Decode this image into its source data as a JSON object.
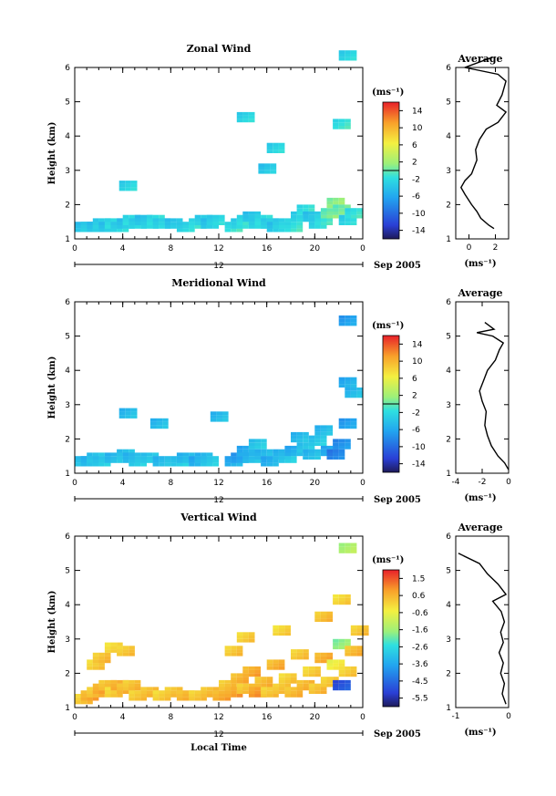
{
  "chart_data": [
    {
      "type": "heatmap",
      "title": "Zonal Wind",
      "ylabel": "Height (km)",
      "xlabel": "",
      "x_ticks": [
        "0",
        "4",
        "8",
        "12",
        "16",
        "20",
        "0"
      ],
      "y_ticks": [
        "1",
        "2",
        "3",
        "4",
        "5",
        "6"
      ],
      "xlim": [
        0,
        24
      ],
      "ylim": [
        1,
        6
      ],
      "date_marker": "12",
      "date_label": "Sep 2005",
      "colorbar": {
        "label": "(ms⁻¹)",
        "range": [
          -16,
          16
        ],
        "ticks": [
          "14",
          "10",
          "6",
          "2",
          "-2",
          "-6",
          "-10",
          "-14"
        ]
      },
      "profile": {
        "title": "Average",
        "xlabel": "(ms⁻¹)",
        "x_ticks": [
          "0",
          "2"
        ],
        "xlim": [
          -1,
          3
        ],
        "y_ticks": [
          "1",
          "2",
          "3",
          "4",
          "5",
          "6"
        ],
        "points": [
          [
            1.9,
            1.3
          ],
          [
            1.5,
            1.4
          ],
          [
            0.9,
            1.6
          ],
          [
            0.6,
            1.8
          ],
          [
            0.2,
            2.0
          ],
          [
            -0.3,
            2.3
          ],
          [
            -0.6,
            2.5
          ],
          [
            -0.3,
            2.7
          ],
          [
            0.2,
            2.9
          ],
          [
            0.4,
            3.1
          ],
          [
            0.6,
            3.3
          ],
          [
            0.5,
            3.6
          ],
          [
            0.8,
            3.9
          ],
          [
            1.3,
            4.2
          ],
          [
            2.2,
            4.4
          ],
          [
            2.8,
            4.7
          ],
          [
            2.1,
            4.9
          ],
          [
            2.5,
            5.2
          ],
          [
            2.8,
            5.6
          ],
          [
            2.2,
            5.8
          ],
          [
            -0.3,
            6.0
          ],
          [
            1.8,
            6.3
          ]
        ]
      },
      "cells": [
        [
          0.5,
          1.3,
          -3
        ],
        [
          1,
          1.3,
          -2
        ],
        [
          1.5,
          1.3,
          -3
        ],
        [
          2,
          1.4,
          -2
        ],
        [
          2.5,
          1.3,
          -3
        ],
        [
          3,
          1.4,
          -1
        ],
        [
          3.5,
          1.3,
          -2
        ],
        [
          4,
          1.4,
          -3
        ],
        [
          4.5,
          1.5,
          -1
        ],
        [
          5,
          1.4,
          -2
        ],
        [
          5.5,
          1.5,
          -3
        ],
        [
          6,
          1.4,
          -2
        ],
        [
          6.5,
          1.5,
          -1
        ],
        [
          7,
          1.4,
          -2
        ],
        [
          8,
          1.4,
          -3
        ],
        [
          9,
          1.3,
          -2
        ],
        [
          10,
          1.4,
          -1
        ],
        [
          10.5,
          1.5,
          -2
        ],
        [
          11,
          1.4,
          -3
        ],
        [
          11.5,
          1.5,
          -2
        ],
        [
          13,
          1.3,
          -1
        ],
        [
          13.5,
          1.4,
          -2
        ],
        [
          14,
          1.5,
          -1
        ],
        [
          14.5,
          1.6,
          -3
        ],
        [
          15,
          1.4,
          -2
        ],
        [
          15.5,
          1.5,
          -1
        ],
        [
          16,
          1.4,
          -2
        ],
        [
          16.5,
          1.3,
          -3
        ],
        [
          17,
          1.4,
          -2
        ],
        [
          18,
          1.3,
          -1
        ],
        [
          18.5,
          1.6,
          -2
        ],
        [
          19,
          1.8,
          -1
        ],
        [
          19.5,
          1.6,
          -3
        ],
        [
          20,
          1.4,
          -2
        ],
        [
          20.5,
          1.5,
          -1
        ],
        [
          21,
          1.7,
          1
        ],
        [
          21.5,
          2.0,
          2
        ],
        [
          22,
          1.8,
          1
        ],
        [
          22.5,
          1.5,
          -2
        ],
        [
          23,
          1.7,
          -1
        ],
        [
          4.2,
          2.5,
          -2
        ],
        [
          14,
          4.5,
          -2
        ],
        [
          15.8,
          3.0,
          -3
        ],
        [
          22,
          4.3,
          -1
        ],
        [
          22.5,
          6.3,
          -2
        ],
        [
          16.5,
          3.6,
          -2
        ]
      ]
    },
    {
      "type": "heatmap",
      "title": "Meridional Wind",
      "ylabel": "Height (km)",
      "xlabel": "",
      "x_ticks": [
        "0",
        "4",
        "8",
        "12",
        "16",
        "20",
        "0"
      ],
      "y_ticks": [
        "1",
        "2",
        "3",
        "4",
        "5",
        "6"
      ],
      "xlim": [
        0,
        24
      ],
      "ylim": [
        1,
        6
      ],
      "date_marker": "12",
      "date_label": "Sep 2005",
      "colorbar": {
        "label": "(ms⁻¹)",
        "range": [
          -16,
          16
        ],
        "ticks": [
          "14",
          "10",
          "6",
          "2",
          "-2",
          "-6",
          "-10",
          "-14"
        ]
      },
      "profile": {
        "title": "Average",
        "xlabel": "(ms⁻¹)",
        "x_ticks": [
          "-4",
          "-2",
          "0"
        ],
        "xlim": [
          -4,
          0
        ],
        "y_ticks": [
          "1",
          "2",
          "3",
          "4",
          "5",
          "6"
        ],
        "points": [
          [
            0.0,
            1.1
          ],
          [
            -0.3,
            1.3
          ],
          [
            -0.8,
            1.5
          ],
          [
            -1.3,
            1.8
          ],
          [
            -1.6,
            2.1
          ],
          [
            -1.8,
            2.4
          ],
          [
            -1.7,
            2.8
          ],
          [
            -2.0,
            3.1
          ],
          [
            -2.2,
            3.4
          ],
          [
            -1.9,
            3.7
          ],
          [
            -1.6,
            4.0
          ],
          [
            -1.0,
            4.3
          ],
          [
            -0.7,
            4.6
          ],
          [
            -0.4,
            4.8
          ],
          [
            -1.2,
            5.0
          ],
          [
            -2.4,
            5.1
          ],
          [
            -1.1,
            5.2
          ],
          [
            -1.8,
            5.4
          ]
        ]
      },
      "cells": [
        [
          0.5,
          1.3,
          -3
        ],
        [
          1,
          1.3,
          -4
        ],
        [
          1.5,
          1.4,
          -3
        ],
        [
          2,
          1.3,
          -3
        ],
        [
          3,
          1.4,
          -4
        ],
        [
          4,
          1.5,
          -3
        ],
        [
          4.5,
          1.4,
          -4
        ],
        [
          5,
          1.3,
          -3
        ],
        [
          6,
          1.4,
          -3
        ],
        [
          7,
          1.3,
          -4
        ],
        [
          8.5,
          1.3,
          -3
        ],
        [
          9,
          1.4,
          -4
        ],
        [
          10,
          1.3,
          -5
        ],
        [
          10.5,
          1.4,
          -4
        ],
        [
          11,
          1.3,
          -3
        ],
        [
          13,
          1.3,
          -5
        ],
        [
          13.5,
          1.4,
          -6
        ],
        [
          14,
          1.6,
          -5
        ],
        [
          14.5,
          1.4,
          -4
        ],
        [
          15,
          1.8,
          -3
        ],
        [
          15.5,
          1.5,
          -4
        ],
        [
          16,
          1.3,
          -5
        ],
        [
          17,
          1.5,
          -4
        ],
        [
          17.5,
          1.4,
          -3
        ],
        [
          18,
          1.6,
          -5
        ],
        [
          18.5,
          2.0,
          -4
        ],
        [
          19,
          1.7,
          -3
        ],
        [
          19.5,
          1.5,
          -4
        ],
        [
          20,
          1.9,
          -3
        ],
        [
          20.5,
          2.2,
          -4
        ],
        [
          21,
          1.6,
          -5
        ],
        [
          21.5,
          1.5,
          -8
        ],
        [
          22,
          1.8,
          -7
        ],
        [
          22.5,
          2.4,
          -6
        ],
        [
          22.5,
          3.6,
          -5
        ],
        [
          23,
          3.3,
          -4
        ],
        [
          4.2,
          2.7,
          -4
        ],
        [
          6.8,
          2.4,
          -4
        ],
        [
          11.8,
          2.6,
          -4
        ],
        [
          22.5,
          5.4,
          -6
        ]
      ]
    },
    {
      "type": "heatmap",
      "title": "Vertical Wind",
      "ylabel": "Height (km)",
      "xlabel": "Local Time",
      "x_ticks": [
        "0",
        "4",
        "8",
        "12",
        "16",
        "20",
        "0"
      ],
      "y_ticks": [
        "1",
        "2",
        "3",
        "4",
        "5",
        "6"
      ],
      "xlim": [
        0,
        24
      ],
      "ylim": [
        1,
        6
      ],
      "date_marker": "12",
      "date_label": "Sep 2005",
      "colorbar": {
        "label": "(ms⁻¹)",
        "range": [
          -6.1,
          2.1
        ],
        "ticks": [
          "1.5",
          "0.6",
          "-0.6",
          "-1.6",
          "-2.6",
          "-3.6",
          "-4.5",
          "-5.5"
        ]
      },
      "profile": {
        "title": "Average",
        "xlabel": "(ms⁻¹)",
        "x_ticks": [
          "-1",
          "0"
        ],
        "xlim": [
          -1,
          0
        ],
        "y_ticks": [
          "1",
          "2",
          "3",
          "4",
          "5",
          "6"
        ],
        "points": [
          [
            -0.05,
            1.1
          ],
          [
            -0.12,
            1.4
          ],
          [
            -0.08,
            1.7
          ],
          [
            -0.15,
            2.0
          ],
          [
            -0.1,
            2.3
          ],
          [
            -0.18,
            2.6
          ],
          [
            -0.1,
            2.9
          ],
          [
            -0.15,
            3.2
          ],
          [
            -0.08,
            3.5
          ],
          [
            -0.14,
            3.8
          ],
          [
            -0.3,
            4.1
          ],
          [
            -0.05,
            4.3
          ],
          [
            -0.2,
            4.6
          ],
          [
            -0.4,
            4.9
          ],
          [
            -0.55,
            5.2
          ],
          [
            -0.95,
            5.5
          ]
        ]
      },
      "cells": [
        [
          0.5,
          1.2,
          0.4
        ],
        [
          1,
          1.3,
          0.8
        ],
        [
          1.5,
          1.4,
          0.5
        ],
        [
          2,
          1.5,
          0.9
        ],
        [
          2.5,
          1.6,
          0.6
        ],
        [
          3,
          1.4,
          0.3
        ],
        [
          3.5,
          1.6,
          0.9
        ],
        [
          4,
          1.5,
          0.7
        ],
        [
          4.5,
          1.6,
          0.5
        ],
        [
          5,
          1.3,
          0.4
        ],
        [
          1.5,
          2.2,
          0.3
        ],
        [
          2,
          2.4,
          0.5
        ],
        [
          3,
          2.7,
          0.2
        ],
        [
          4,
          2.6,
          0.4
        ],
        [
          6,
          1.4,
          0.6
        ],
        [
          7,
          1.3,
          0.3
        ],
        [
          8,
          1.4,
          0.5
        ],
        [
          9,
          1.3,
          0.7
        ],
        [
          10,
          1.3,
          0.4
        ],
        [
          11,
          1.4,
          0.6
        ],
        [
          12,
          1.3,
          0.8
        ],
        [
          12.5,
          1.6,
          0.5
        ],
        [
          13,
          1.4,
          0.9
        ],
        [
          13.5,
          1.8,
          0.7
        ],
        [
          14,
          1.5,
          0.5
        ],
        [
          14.5,
          2.0,
          0.8
        ],
        [
          15,
          1.4,
          1.1
        ],
        [
          15.5,
          1.7,
          0.6
        ],
        [
          16,
          1.4,
          0.4
        ],
        [
          16.5,
          2.2,
          0.7
        ],
        [
          17,
          1.5,
          0.5
        ],
        [
          17.5,
          1.8,
          0.3
        ],
        [
          18,
          1.4,
          0.6
        ],
        [
          18.5,
          2.5,
          0.4
        ],
        [
          19,
          1.6,
          0.7
        ],
        [
          19.5,
          2.0,
          0.3
        ],
        [
          20,
          1.5,
          0.5
        ],
        [
          20.5,
          2.4,
          0.8
        ],
        [
          21,
          1.7,
          0.4
        ],
        [
          21.5,
          2.2,
          -0.2
        ],
        [
          22,
          2.8,
          -1.5
        ],
        [
          22,
          1.6,
          -4.8
        ],
        [
          22.5,
          2.0,
          0.3
        ],
        [
          23,
          2.6,
          0.6
        ],
        [
          23.5,
          3.2,
          0.4
        ],
        [
          13,
          2.6,
          0.4
        ],
        [
          14,
          3.0,
          0.3
        ],
        [
          17,
          3.2,
          0.2
        ],
        [
          20.5,
          3.6,
          0.5
        ],
        [
          22,
          4.1,
          0.2
        ],
        [
          22.5,
          5.6,
          -1.2
        ]
      ]
    }
  ]
}
